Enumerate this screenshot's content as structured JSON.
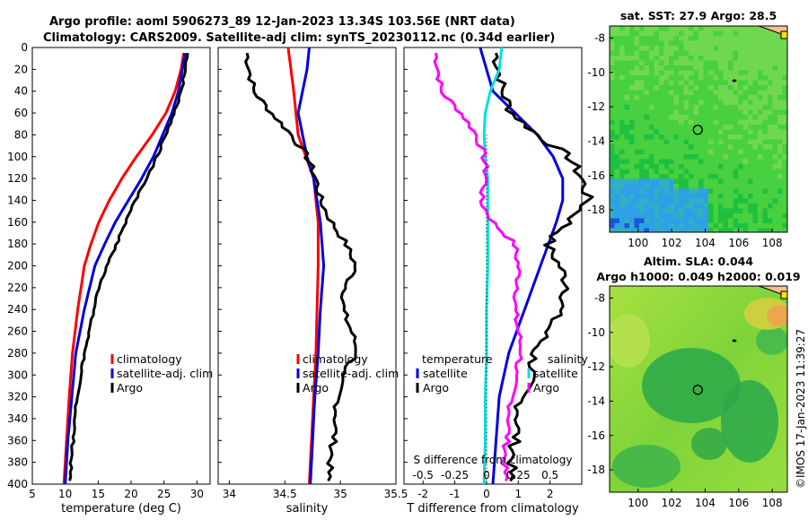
{
  "header": {
    "title_line1": "Argo profile: aoml 5906273_89 12-Jan-2023 13.34S 103.56E (NRT data)",
    "title_line2": "Climatology: CARS2009. Satellite-adj clim: synTS_20230112.nc (0.34d earlier)"
  },
  "colors": {
    "climatology": "#ff0000",
    "satellite": "#0000dd",
    "argo": "#000000",
    "argo_salinity_diff": "#ff00ff",
    "satellite_salinity_diff": "#00e0e0"
  },
  "chart_data": [
    {
      "type": "line",
      "name": "temperature-profile",
      "xlabel": "temperature (deg C)",
      "ylabel": "",
      "xlim": [
        5,
        32
      ],
      "ylim": [
        400,
        0
      ],
      "xticks": [
        "5",
        "10",
        "15",
        "20",
        "25",
        "30"
      ],
      "yticks": [
        "0",
        "20",
        "40",
        "60",
        "80",
        "100",
        "120",
        "140",
        "160",
        "180",
        "200",
        "220",
        "240",
        "260",
        "280",
        "300",
        "320",
        "340",
        "360",
        "380",
        "400"
      ],
      "legend": [
        "climatology",
        "satellite-adj. clim",
        "Argo"
      ],
      "series": [
        {
          "name": "climatology",
          "depth": [
            5,
            20,
            40,
            60,
            80,
            100,
            120,
            140,
            160,
            180,
            200,
            240,
            280,
            320,
            360,
            400
          ],
          "values": [
            28.0,
            27.6,
            26.7,
            25.3,
            23.2,
            20.8,
            18.6,
            16.7,
            15.1,
            13.9,
            12.9,
            11.9,
            11.1,
            10.6,
            10.2,
            9.8
          ]
        },
        {
          "name": "satellite-adj. clim",
          "depth": [
            5,
            20,
            40,
            60,
            80,
            100,
            120,
            140,
            160,
            180,
            200,
            240,
            280,
            320,
            360,
            400
          ],
          "values": [
            28.2,
            27.8,
            27.2,
            26.2,
            24.8,
            23.4,
            21.6,
            19.6,
            17.6,
            16.0,
            14.5,
            12.9,
            11.6,
            11.0,
            10.4,
            10.0
          ]
        },
        {
          "name": "Argo",
          "depth": [
            5,
            20,
            40,
            60,
            80,
            100,
            120,
            140,
            160,
            180,
            200,
            220,
            240,
            260,
            280,
            300,
            320,
            340,
            360,
            380,
            400
          ],
          "values": [
            28.6,
            28.3,
            27.6,
            26.6,
            25.3,
            23.9,
            22.4,
            20.6,
            19.2,
            17.8,
            16.3,
            15.2,
            14.3,
            13.6,
            13.0,
            12.3,
            11.8,
            11.5,
            11.2,
            10.9,
            10.6
          ]
        }
      ]
    },
    {
      "type": "line",
      "name": "salinity-profile",
      "xlabel": "salinity",
      "xlim": [
        33.9,
        35.5
      ],
      "ylim": [
        400,
        0
      ],
      "xticks": [
        "34",
        "34.5",
        "35",
        "35.5"
      ],
      "legend": [
        "climatology",
        "satellite-adj. clim",
        "Argo"
      ],
      "series": [
        {
          "name": "climatology",
          "depth": [
            0,
            40,
            80,
            120,
            160,
            200,
            240,
            280,
            320,
            360,
            400
          ],
          "values": [
            34.53,
            34.58,
            34.62,
            34.76,
            34.8,
            34.8,
            34.79,
            34.78,
            34.76,
            34.74,
            34.72
          ]
        },
        {
          "name": "satellite-adj. clim",
          "depth": [
            0,
            20,
            40,
            60,
            80,
            100,
            120,
            160,
            200,
            240,
            280,
            320,
            360,
            400
          ],
          "values": [
            34.72,
            34.7,
            34.66,
            34.62,
            34.66,
            34.7,
            34.76,
            34.82,
            34.85,
            34.82,
            34.8,
            34.77,
            34.75,
            34.73
          ]
        },
        {
          "name": "Argo",
          "depth": [
            5,
            20,
            40,
            60,
            80,
            100,
            120,
            140,
            160,
            180,
            200,
            220,
            240,
            260,
            280,
            300,
            320,
            340,
            360,
            380,
            400
          ],
          "values": [
            34.16,
            34.18,
            34.22,
            34.38,
            34.56,
            34.7,
            34.78,
            34.82,
            34.92,
            35.05,
            35.14,
            35.05,
            35.02,
            35.1,
            35.16,
            35.0,
            34.98,
            34.96,
            34.94,
            34.91,
            34.88
          ]
        }
      ]
    },
    {
      "type": "line",
      "name": "difference-profile",
      "xlabel": "T difference from climatology",
      "top_axis_label": "S difference from climatology",
      "xlim": [
        -2.6,
        3.0
      ],
      "ylim": [
        400,
        0
      ],
      "xticks": [
        "-2",
        "-1",
        "0",
        "1",
        "2"
      ],
      "top_ticks": [
        "-0.5",
        "-0.25",
        "0",
        "0.25",
        "0.5"
      ],
      "legend_left": [
        "temperature",
        "satellite",
        "Argo"
      ],
      "legend_right": [
        "salinity",
        "satellite",
        "Argo"
      ],
      "series": [
        {
          "name": "temperature satellite",
          "depth": [
            0,
            40,
            80,
            100,
            120,
            140,
            160,
            200,
            240,
            280,
            320,
            360,
            400
          ],
          "values": [
            -0.2,
            0.2,
            1.6,
            2.1,
            2.4,
            2.4,
            2.2,
            1.7,
            1.2,
            0.7,
            0.4,
            0.3,
            0.2
          ]
        },
        {
          "name": "temperature Argo",
          "depth": [
            5,
            40,
            60,
            80,
            100,
            120,
            140,
            160,
            180,
            200,
            220,
            240,
            260,
            280,
            300,
            320,
            340,
            360,
            380,
            400
          ],
          "values": [
            0.3,
            0.5,
            0.8,
            1.6,
            2.6,
            3.0,
            3.2,
            2.6,
            1.9,
            2.3,
            2.6,
            2.3,
            1.9,
            1.5,
            1.4,
            1.1,
            1.0,
            0.9,
            0.8,
            0.7
          ]
        },
        {
          "name": "salinity satellite",
          "depth": [
            0,
            20,
            40,
            60,
            80,
            100,
            120,
            160,
            200,
            240,
            280,
            320,
            360,
            400
          ],
          "values": [
            0.12,
            0.1,
            0.03,
            -0.01,
            -0.02,
            -0.01,
            0.01,
            0.01,
            0.01,
            0.0,
            0.0,
            -0.01,
            -0.01,
            -0.02
          ]
        },
        {
          "name": "salinity Argo",
          "depth": [
            5,
            20,
            40,
            60,
            80,
            100,
            120,
            140,
            160,
            180,
            200,
            220,
            240,
            260,
            280,
            300,
            320,
            340,
            360,
            380,
            400
          ],
          "values": [
            -0.4,
            -0.38,
            -0.36,
            -0.2,
            -0.08,
            -0.02,
            0.0,
            -0.05,
            0.05,
            0.22,
            0.25,
            0.25,
            0.22,
            0.25,
            0.28,
            0.22,
            0.2,
            0.18,
            0.16,
            0.14,
            0.15
          ]
        }
      ]
    },
    {
      "type": "heatmap",
      "name": "sst-map",
      "title": "sat. SST: 27.9 Argo: 28.5",
      "xticks": [
        "100",
        "102",
        "104",
        "106",
        "108"
      ],
      "yticks": [
        "-8",
        "-10",
        "-12",
        "-14",
        "-16",
        "-18"
      ],
      "xlim": [
        98.3,
        108.9
      ],
      "ylim": [
        -19.3,
        -7.3
      ],
      "marker": {
        "lon": 103.56,
        "lat": -13.34
      }
    },
    {
      "type": "heatmap",
      "name": "sla-map",
      "title": "Altim. SLA: 0.044",
      "subtitle": "Argo h1000: 0.049 h2000: 0.019",
      "xticks": [
        "100",
        "102",
        "104",
        "106",
        "108"
      ],
      "yticks": [
        "-8",
        "-10",
        "-12",
        "-14",
        "-16",
        "-18"
      ],
      "xlim": [
        98.3,
        108.9
      ],
      "ylim": [
        -19.3,
        -7.3
      ],
      "marker": {
        "lon": 103.56,
        "lat": -13.34
      }
    }
  ],
  "footer": {
    "stamp": "©IMOS 17-Jan-2023 11:39:27"
  }
}
